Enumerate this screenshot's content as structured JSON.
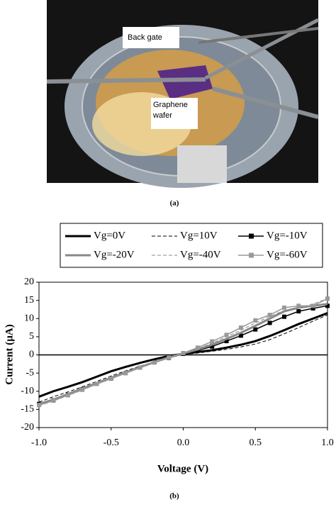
{
  "photo": {
    "back_gate_label": "Back gate",
    "graphene_label": "Graphene wafer",
    "caption": "(a)"
  },
  "chart_data": {
    "type": "line",
    "caption": "(b)",
    "x_label": "Voltage (V)",
    "y_label": "Current (µA)",
    "x": [
      -1,
      -0.9,
      -0.8,
      -0.7,
      -0.6,
      -0.5,
      -0.4,
      -0.3,
      -0.2,
      -0.1,
      0,
      0.1,
      0.2,
      0.3,
      0.4,
      0.5,
      0.6,
      0.7,
      0.8,
      0.9,
      1
    ],
    "xlim": [
      -1,
      1
    ],
    "xticks": [
      {
        "value": -1,
        "label": "-1.0"
      },
      -0.5,
      {
        "value": 0,
        "label": "0.0"
      },
      0.5,
      {
        "value": 1,
        "label": "1.0"
      }
    ],
    "ylim": [
      -20,
      20
    ],
    "yticks": [
      -20,
      -15,
      -10,
      -5,
      0,
      5,
      10,
      15,
      20
    ],
    "series": [
      {
        "name": "Vg=0V",
        "color": "#000000",
        "width": 3,
        "dash": false,
        "marker": "none",
        "values": [
          -11.5,
          -10,
          -8.8,
          -7.5,
          -6,
          -4.5,
          -3.3,
          -2.2,
          -1.2,
          -0.3,
          0.3,
          0.8,
          1.3,
          2,
          2.8,
          3.8,
          5.2,
          6.8,
          8.5,
          10,
          11.5
        ]
      },
      {
        "name": "Vg=10V",
        "color": "#000000",
        "width": 1,
        "dash": true,
        "marker": "none",
        "values": [
          -13,
          -11.5,
          -10.2,
          -8.8,
          -7.3,
          -5.8,
          -4.4,
          -3.1,
          -1.9,
          -0.8,
          0.1,
          0.5,
          1,
          1.5,
          2.2,
          3,
          4.2,
          5.8,
          7.5,
          9.3,
          11
        ]
      },
      {
        "name": "Vg=-10V",
        "color": "#000000",
        "width": 1.5,
        "dash": false,
        "marker": "square",
        "values": [
          -13.5,
          -12.5,
          -11,
          -9.5,
          -8,
          -6.5,
          -5,
          -3.5,
          -2,
          -0.8,
          0.3,
          1.2,
          2.3,
          3.8,
          5.3,
          7,
          8.8,
          10.5,
          12,
          12.8,
          13.5
        ]
      },
      {
        "name": "Vg=-20V",
        "color": "#888888",
        "width": 3,
        "dash": false,
        "marker": "none",
        "values": [
          -13.5,
          -12.3,
          -10.8,
          -9.3,
          -7.8,
          -6.3,
          -4.8,
          -3.4,
          -2,
          -0.7,
          0.4,
          1.5,
          2.8,
          4.4,
          6.1,
          8,
          10,
          12,
          13,
          13.5,
          14
        ]
      },
      {
        "name": "Vg=-40V",
        "color": "#888888",
        "width": 1,
        "dash": true,
        "marker": "none",
        "values": [
          -14,
          -12.7,
          -11.2,
          -9.7,
          -8.1,
          -6.6,
          -5.1,
          -3.6,
          -2.2,
          -0.8,
          0.4,
          1.7,
          3.2,
          5,
          6.8,
          8.8,
          10.6,
          12.2,
          13,
          14,
          15.5
        ]
      },
      {
        "name": "Vg=-60V",
        "color": "#999999",
        "width": 1.5,
        "dash": false,
        "marker": "square",
        "values": [
          -13.8,
          -12.6,
          -11.1,
          -9.6,
          -8,
          -6.5,
          -5,
          -3.5,
          -2.1,
          -0.7,
          0.5,
          2,
          3.7,
          5.5,
          7.5,
          9.5,
          11,
          13,
          13.5,
          13.5,
          15.5
        ]
      }
    ]
  }
}
